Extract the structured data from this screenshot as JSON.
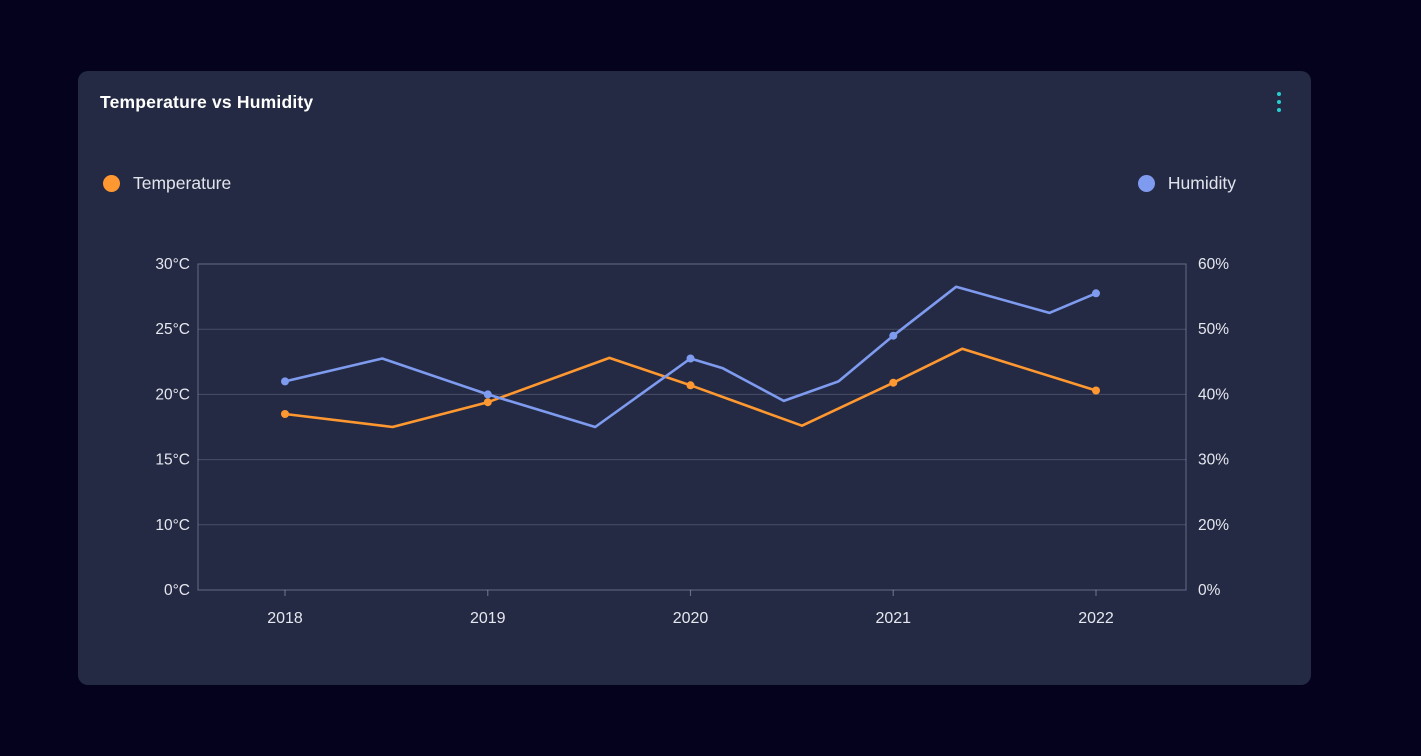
{
  "card": {
    "title": "Temperature vs Humidity",
    "menu_icon": "kebab-vertical-dots-icon"
  },
  "colors": {
    "page_bg": "#04021d",
    "card_bg": "#242a43",
    "accent_teal": "#27cfcf",
    "temperature": "#ff9830",
    "humidity": "#7e9bf0",
    "axis_label": "#e6e7ef",
    "grid_line": "rgba(201,206,230,0.22)",
    "axis_border": "rgba(201,206,230,0.40)"
  },
  "legend": {
    "items": [
      {
        "label": "Temperature",
        "color": "#ff9830"
      },
      {
        "label": "Humidity",
        "color": "#7e9bf0"
      }
    ]
  },
  "chart_data": {
    "type": "line",
    "title": "Temperature vs Humidity",
    "legend_position": "top",
    "grid": "horizontal-only",
    "x_tick_labels": [
      "2018",
      "2019",
      "2020",
      "2021",
      "2022"
    ],
    "x_base": 2018,
    "left_axis": {
      "unit": "°C",
      "tick_labels": [
        "0°C",
        "10°C",
        "15°C",
        "20°C",
        "25°C",
        "30°C"
      ],
      "tick_values": [
        0,
        10,
        15,
        20,
        25,
        30
      ]
    },
    "right_axis": {
      "unit": "%",
      "tick_labels": [
        "0%",
        "20%",
        "30%",
        "40%",
        "50%",
        "60%"
      ],
      "tick_values": [
        0,
        20,
        30,
        40,
        50,
        60
      ]
    },
    "series": [
      {
        "name": "Temperature",
        "color": "#ff9830",
        "axis": "left",
        "points": [
          {
            "x": 2018,
            "y": 18.5,
            "marker": true
          },
          {
            "x": 2018.53,
            "y": 17.5,
            "marker": false
          },
          {
            "x": 2019,
            "y": 19.4,
            "marker": true
          },
          {
            "x": 2019.6,
            "y": 22.8,
            "marker": false
          },
          {
            "x": 2020,
            "y": 20.7,
            "marker": true
          },
          {
            "x": 2020.55,
            "y": 17.6,
            "marker": false
          },
          {
            "x": 2021,
            "y": 20.9,
            "marker": true
          },
          {
            "x": 2021.34,
            "y": 23.5,
            "marker": false
          },
          {
            "x": 2022,
            "y": 20.3,
            "marker": true
          }
        ]
      },
      {
        "name": "Humidity",
        "color": "#7e9bf0",
        "axis": "right",
        "points": [
          {
            "x": 2018,
            "y": 42,
            "marker": true
          },
          {
            "x": 2018.48,
            "y": 45.5,
            "marker": false
          },
          {
            "x": 2019,
            "y": 40,
            "marker": true
          },
          {
            "x": 2019.53,
            "y": 35,
            "marker": false
          },
          {
            "x": 2020,
            "y": 45.5,
            "marker": true
          },
          {
            "x": 2020.16,
            "y": 44,
            "marker": false
          },
          {
            "x": 2020.46,
            "y": 39,
            "marker": false
          },
          {
            "x": 2020.73,
            "y": 42,
            "marker": false
          },
          {
            "x": 2021,
            "y": 49,
            "marker": true
          },
          {
            "x": 2021.31,
            "y": 56.5,
            "marker": false
          },
          {
            "x": 2021.77,
            "y": 52.5,
            "marker": false
          },
          {
            "x": 2022,
            "y": 55.5,
            "marker": true
          }
        ]
      }
    ]
  }
}
